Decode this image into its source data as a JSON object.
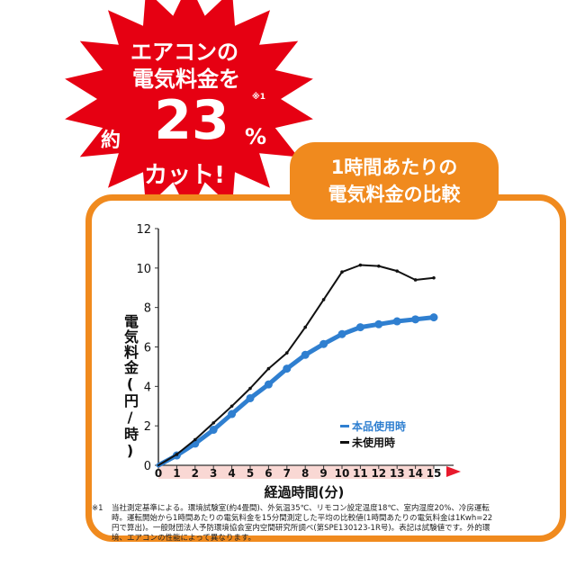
{
  "promo": {
    "line1": "エアコンの",
    "line2": "電気料金を",
    "prefix": "約",
    "number": "23",
    "unit": "%",
    "note_mark": "※1",
    "line4": "カット!"
  },
  "panel_title": {
    "line1": "1時間あたりの",
    "line2": "電気料金の比較"
  },
  "footnote": {
    "mark": "※1",
    "text": "当社測定基準による。環境試験室(約4畳間)、外気温35℃、リモコン設定温度18℃、室内湿度20%、冷房運転時。運転開始から1時間あたりの電気料金を15分間測定した平均の比較値(1時間あたりの電気料金は1Kwh=22円で算出)。一般財団法人予防環境協会室内空間研究所調べ(第SPE130123-1R号)。表記は試験値です。外的環境、エアコンの性能によって異なります。"
  },
  "colors": {
    "accent_orange": "#f08a1e",
    "burst_red": "#e60012",
    "series_product": "#2f7fd0",
    "series_unused": "#111111",
    "axis_arrow": "#e8192c"
  },
  "chart_data": {
    "type": "line",
    "ylabel": "電気料金(円/時)",
    "xlabel": "経過時間(分)",
    "xlim": [
      0,
      15
    ],
    "ylim": [
      0,
      12
    ],
    "x_ticks": [
      0,
      1,
      2,
      3,
      4,
      5,
      6,
      7,
      8,
      9,
      10,
      11,
      12,
      13,
      14,
      15
    ],
    "y_ticks": [
      0,
      2,
      4,
      6,
      8,
      10,
      12
    ],
    "legend_position": "right",
    "series": [
      {
        "name": "本品使用時",
        "color": "#2f7fd0",
        "markers": true,
        "x": [
          0,
          1,
          2,
          3,
          4,
          5,
          6,
          7,
          8,
          9,
          10,
          11,
          12,
          13,
          14,
          15
        ],
        "y": [
          0,
          0.5,
          1.1,
          1.8,
          2.6,
          3.4,
          4.1,
          4.9,
          5.6,
          6.15,
          6.65,
          7.0,
          7.15,
          7.3,
          7.4,
          7.5
        ]
      },
      {
        "name": "未使用時",
        "color": "#111111",
        "markers": false,
        "x": [
          0,
          1,
          2,
          3,
          4,
          5,
          6,
          7,
          8,
          9,
          10,
          11,
          12,
          13,
          14,
          15
        ],
        "y": [
          0,
          0.55,
          1.3,
          2.15,
          3.0,
          3.9,
          4.9,
          5.7,
          7.0,
          8.4,
          9.8,
          10.15,
          10.1,
          9.85,
          9.4,
          9.5
        ]
      }
    ]
  }
}
